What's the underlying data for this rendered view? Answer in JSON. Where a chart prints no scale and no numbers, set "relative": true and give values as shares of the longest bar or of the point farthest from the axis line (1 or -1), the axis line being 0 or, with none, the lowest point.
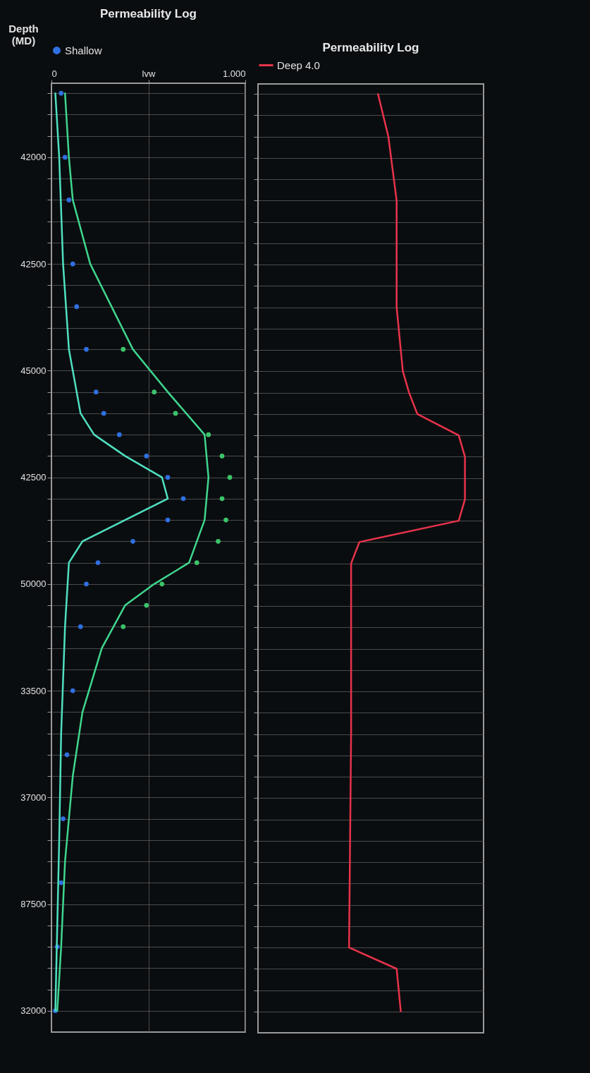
{
  "chart_data": [
    {
      "type": "line",
      "title": "Permeability Log",
      "ylabel": "Depth (MD)",
      "orientation": "horizontal",
      "legend": "top",
      "grid": true,
      "categories": [
        null,
        null,
        null,
        "42000",
        null,
        null,
        null,
        null,
        "42500",
        null,
        null,
        null,
        null,
        "45000",
        null,
        null,
        null,
        null,
        "42500",
        null,
        null,
        null,
        null,
        "50000",
        null,
        null,
        null,
        null,
        "33500",
        null,
        null,
        null,
        null,
        "37000",
        null,
        null,
        null,
        null,
        "87500",
        null,
        null,
        null,
        null,
        "32000"
      ],
      "xlim": [
        0,
        1
      ],
      "xticks": [
        0,
        {
          "value": 0.5,
          "label": "lvw"
        },
        {
          "value": 1,
          "label": "1.000"
        }
      ],
      "series": [
        {
          "name": "Shallow",
          "type": "scatter",
          "color": "#2f6fe0",
          "values": [
            0.05,
            null,
            null,
            0.07,
            null,
            0.09,
            null,
            null,
            0.11,
            null,
            0.13,
            null,
            0.18,
            null,
            0.23,
            0.27,
            0.35,
            0.49,
            0.6,
            0.68,
            0.6,
            0.42,
            0.24,
            0.18,
            null,
            0.15,
            null,
            null,
            0.11,
            null,
            null,
            0.08,
            null,
            null,
            0.06,
            null,
            null,
            0.05,
            null,
            null,
            0.03,
            null,
            null,
            0.02
          ]
        },
        {
          "type": "scatter",
          "color": "#3cc46a",
          "values": [
            null,
            null,
            null,
            null,
            null,
            null,
            null,
            null,
            null,
            null,
            null,
            null,
            0.37,
            null,
            0.53,
            0.64,
            0.81,
            0.88,
            0.92,
            0.88,
            0.9,
            0.86,
            0.75,
            0.57,
            0.49,
            0.37,
            null,
            null,
            null,
            null,
            null,
            null,
            null,
            null,
            null,
            null,
            null,
            null,
            null,
            null,
            null,
            null,
            null,
            null
          ]
        },
        {
          "color": "#3fd68e",
          "values": [
            0.07,
            null,
            null,
            0.09,
            null,
            0.11,
            null,
            null,
            0.2,
            null,
            0.31,
            null,
            0.42,
            null,
            0.6,
            null,
            0.79,
            null,
            0.81,
            null,
            0.79,
            null,
            0.71,
            0.53,
            0.38,
            null,
            0.26,
            null,
            null,
            0.16,
            null,
            null,
            0.11,
            null,
            null,
            null,
            0.07,
            null,
            null,
            null,
            0.05,
            null,
            null,
            0.03
          ]
        },
        {
          "color": "#4fe0c0",
          "values": [
            0.02,
            null,
            null,
            0.04,
            null,
            null,
            null,
            null,
            0.06,
            null,
            null,
            null,
            0.09,
            null,
            null,
            0.15,
            0.22,
            0.38,
            0.57,
            0.6,
            0.38,
            0.16,
            0.09,
            null,
            null,
            0.07,
            null,
            null,
            null,
            null,
            0.05,
            null,
            null,
            null,
            null,
            0.04,
            null,
            null,
            null,
            null,
            null,
            null,
            null,
            0.02
          ]
        }
      ]
    },
    {
      "type": "line",
      "title": "Permeability Log",
      "orientation": "horizontal",
      "relative": true,
      "tick_labels": false,
      "legend": "top",
      "grid": "y",
      "categories": [
        null,
        null,
        null,
        "42000",
        null,
        null,
        null,
        null,
        "42500",
        null,
        null,
        null,
        null,
        "45000",
        null,
        null,
        null,
        null,
        "42500",
        null,
        null,
        null,
        null,
        "50000",
        null,
        null,
        null,
        null,
        "33500",
        null,
        null,
        null,
        null,
        "37000",
        null,
        null,
        null,
        null,
        "87500",
        null,
        null,
        null,
        null,
        "32000"
      ],
      "series": [
        {
          "name": "Deep 4.0",
          "color": "#e8334a",
          "values": [
            0.58,
            null,
            0.63,
            null,
            null,
            0.67,
            null,
            null,
            null,
            null,
            0.67,
            null,
            null,
            0.7,
            0.73,
            0.77,
            0.97,
            1,
            null,
            1,
            0.97,
            0.49,
            0.45,
            null,
            null,
            null,
            null,
            null,
            null,
            null,
            0.45,
            null,
            null,
            null,
            null,
            null,
            null,
            null,
            null,
            null,
            0.44,
            0.67,
            0.68,
            0.69
          ]
        }
      ]
    }
  ]
}
